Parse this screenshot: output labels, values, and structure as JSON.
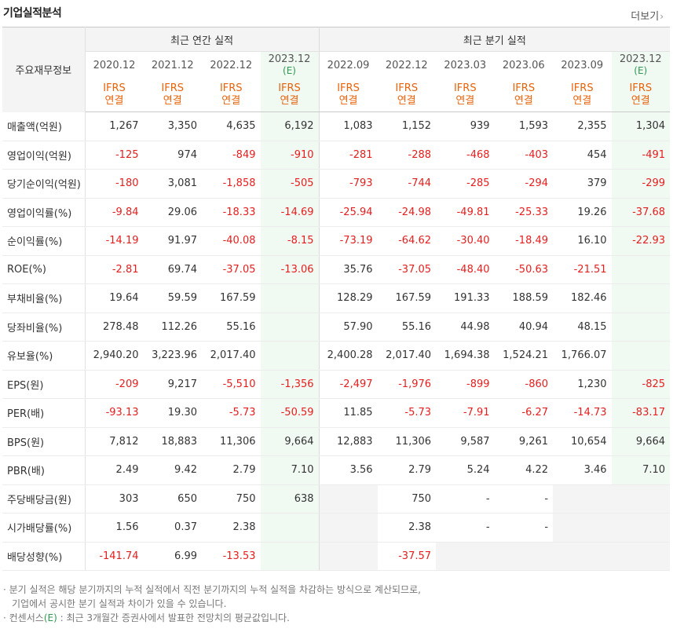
{
  "section_title": "기업실적분석",
  "more_label": "더보기",
  "more_icon": "chevron-right-icon",
  "header": {
    "row_label": "주요재무정보",
    "annual_group": "최근 연간 실적",
    "quarter_group": "최근 분기 실적",
    "standard_top": "IFRS",
    "standard_bottom": "연결",
    "estimate_mark": "(E)"
  },
  "periods": [
    {
      "label": "2020.12",
      "estimate": false
    },
    {
      "label": "2021.12",
      "estimate": false
    },
    {
      "label": "2022.12",
      "estimate": false
    },
    {
      "label": "2023.12",
      "estimate": true
    },
    {
      "label": "2022.09",
      "estimate": false
    },
    {
      "label": "2022.12",
      "estimate": false
    },
    {
      "label": "2023.03",
      "estimate": false
    },
    {
      "label": "2023.06",
      "estimate": false
    },
    {
      "label": "2023.09",
      "estimate": false
    },
    {
      "label": "2023.12",
      "estimate": true
    }
  ],
  "rows": [
    {
      "label": "매출액(억원)",
      "group_start": true,
      "values": [
        "1,267",
        "3,350",
        "4,635",
        "6,192",
        "1,083",
        "1,152",
        "939",
        "1,593",
        "2,355",
        "1,304"
      ]
    },
    {
      "label": "영업이익(억원)",
      "values": [
        "-125",
        "974",
        "-849",
        "-910",
        "-281",
        "-288",
        "-468",
        "-403",
        "454",
        "-491"
      ]
    },
    {
      "label": "당기순이익(억원)",
      "values": [
        "-180",
        "3,081",
        "-1,858",
        "-505",
        "-793",
        "-744",
        "-285",
        "-294",
        "379",
        "-299"
      ]
    },
    {
      "label": "영업이익률(%)",
      "group_start": true,
      "values": [
        "-9.84",
        "29.06",
        "-18.33",
        "-14.69",
        "-25.94",
        "-24.98",
        "-49.81",
        "-25.33",
        "19.26",
        "-37.68"
      ]
    },
    {
      "label": "순이익률(%)",
      "values": [
        "-14.19",
        "91.97",
        "-40.08",
        "-8.15",
        "-73.19",
        "-64.62",
        "-30.40",
        "-18.49",
        "16.10",
        "-22.93"
      ]
    },
    {
      "label": "ROE(%)",
      "values": [
        "-2.81",
        "69.74",
        "-37.05",
        "-13.06",
        "35.76",
        "-37.05",
        "-48.40",
        "-50.63",
        "-21.51",
        ""
      ]
    },
    {
      "label": "부채비율(%)",
      "group_start": true,
      "values": [
        "19.64",
        "59.59",
        "167.59",
        "",
        "128.29",
        "167.59",
        "191.33",
        "188.59",
        "182.46",
        ""
      ]
    },
    {
      "label": "당좌비율(%)",
      "values": [
        "278.48",
        "112.26",
        "55.16",
        "",
        "57.90",
        "55.16",
        "44.98",
        "40.94",
        "48.15",
        ""
      ]
    },
    {
      "label": "유보율(%)",
      "values": [
        "2,940.20",
        "3,223.96",
        "2,017.40",
        "",
        "2,400.28",
        "2,017.40",
        "1,694.38",
        "1,524.21",
        "1,766.07",
        ""
      ]
    },
    {
      "label": "EPS(원)",
      "group_start": true,
      "values": [
        "-209",
        "9,217",
        "-5,510",
        "-1,356",
        "-2,497",
        "-1,976",
        "-899",
        "-860",
        "1,230",
        "-825"
      ]
    },
    {
      "label": "PER(배)",
      "values": [
        "-93.13",
        "19.30",
        "-5.73",
        "-50.59",
        "11.85",
        "-5.73",
        "-7.91",
        "-6.27",
        "-14.73",
        "-83.17"
      ]
    },
    {
      "label": "BPS(원)",
      "values": [
        "7,812",
        "18,883",
        "11,306",
        "9,664",
        "12,883",
        "11,306",
        "9,587",
        "9,261",
        "10,654",
        "9,664"
      ]
    },
    {
      "label": "PBR(배)",
      "values": [
        "2.49",
        "9.42",
        "2.79",
        "7.10",
        "3.56",
        "2.79",
        "5.24",
        "4.22",
        "3.46",
        "7.10"
      ]
    },
    {
      "label": "주당배당금(원)",
      "group_start": true,
      "values": [
        "303",
        "650",
        "750",
        "638",
        "",
        "750",
        "-",
        "-",
        "",
        ""
      ],
      "gray": [
        4,
        8,
        9
      ]
    },
    {
      "label": "시가배당률(%)",
      "values": [
        "1.56",
        "0.37",
        "2.38",
        "",
        "",
        "2.38",
        "-",
        "-",
        "",
        ""
      ],
      "gray": [
        4,
        8,
        9
      ]
    },
    {
      "label": "배당성향(%)",
      "values": [
        "-141.74",
        "6.99",
        "-13.53",
        "",
        "",
        "-37.57",
        "",
        "",
        "",
        ""
      ],
      "gray": [
        4,
        6,
        7,
        8,
        9
      ]
    }
  ],
  "notes": {
    "line1": "분기 실적은 해당 분기까지의 누적 실적에서 직전 분기까지의 누적 실적을 차감하는 방식으로 계산되므로,",
    "line2": "기업에서 공시한 분기 실적과 차이가 있을 수 있습니다.",
    "line3_prefix": "컨센서스",
    "line3_mark": "(E)",
    "line3_suffix": " : 최근 3개월간 증권사에서 발표한 전망치의 평균값입니다."
  },
  "colors": {
    "negative": "#e51e1e",
    "ifrs": "#e8620a",
    "estimate": "#2e9a52"
  }
}
